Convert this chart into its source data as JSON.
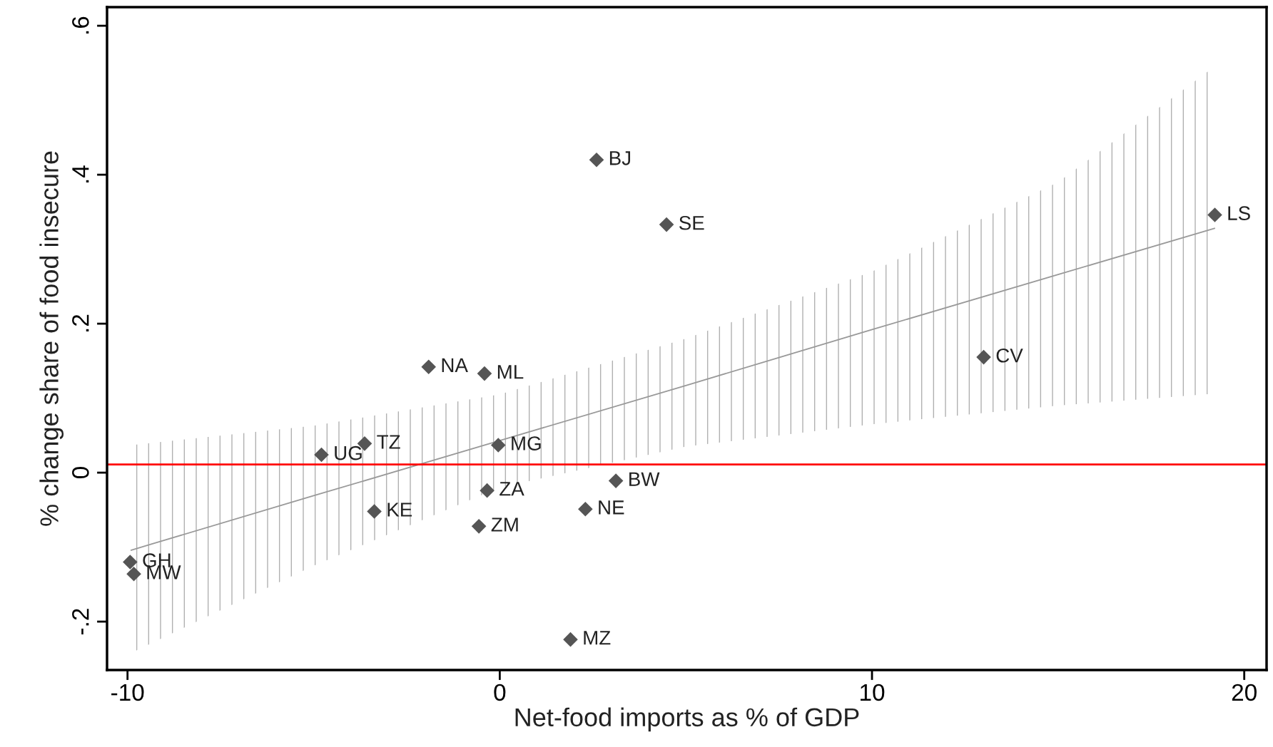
{
  "chart_data": {
    "type": "scatter",
    "xlabel": "Net-food imports as % of GDP",
    "ylabel": "% change share of food insecure",
    "xlim": [
      -10.55,
      20.6
    ],
    "ylim": [
      -0.265,
      0.625
    ],
    "xticks": [
      -10,
      0,
      10,
      20
    ],
    "yticks": [
      {
        "value": -0.2,
        "label": "-.2"
      },
      0,
      {
        "value": 0.2,
        "label": ".2"
      },
      {
        "value": 0.4,
        "label": ".4"
      },
      {
        "value": 0.6,
        "label": ".6"
      }
    ],
    "grid": false,
    "legend": false,
    "marker": "diamond",
    "series": [
      {
        "color": "#555555",
        "x": [
          2.6,
          4.48,
          19.21,
          13.0,
          -1.91,
          -0.41,
          -3.63,
          -4.79,
          -0.04,
          -0.34,
          3.12,
          -3.37,
          2.3,
          -0.56,
          -9.93,
          -9.83,
          1.9
        ],
        "values": [
          0.42,
          0.333,
          0.346,
          0.155,
          0.142,
          0.133,
          0.039,
          0.024,
          0.037,
          -0.024,
          -0.011,
          -0.052,
          -0.049,
          -0.072,
          -0.12,
          -0.136,
          -0.224
        ]
      },
      {
        "type": "line",
        "marker": "none",
        "color": "#999999",
        "x": [
          -9.9,
          -5,
          0,
          5,
          10,
          15,
          19.2
        ],
        "values": [
          -0.104,
          -0.031,
          0.043,
          0.117,
          0.192,
          0.266,
          0.328
        ],
        "lower": [
          -0.242,
          -0.125,
          -0.02,
          0.035,
          0.065,
          0.09,
          0.106
        ],
        "upper": [
          0.037,
          0.063,
          0.105,
          0.18,
          0.27,
          0.39,
          0.545
        ]
      }
    ],
    "ref_lines": [
      {
        "axis": "y",
        "value": 0.011,
        "color": "#ff0000",
        "line_style": "solid"
      }
    ],
    "annotations": [
      {
        "text": "BJ",
        "x": 2.6,
        "y": 0.42
      },
      {
        "text": "SE",
        "x": 4.48,
        "y": 0.333
      },
      {
        "text": "LS",
        "x": 19.21,
        "y": 0.346
      },
      {
        "text": "CV",
        "x": 13.0,
        "y": 0.155
      },
      {
        "text": "NA",
        "x": -1.91,
        "y": 0.142
      },
      {
        "text": "ML",
        "x": -0.41,
        "y": 0.133
      },
      {
        "text": "TZ",
        "x": -3.63,
        "y": 0.039
      },
      {
        "text": "UG",
        "x": -4.79,
        "y": 0.024
      },
      {
        "text": "MG",
        "x": -0.04,
        "y": 0.037
      },
      {
        "text": "ZA",
        "x": -0.34,
        "y": -0.024
      },
      {
        "text": "BW",
        "x": 3.12,
        "y": -0.011
      },
      {
        "text": "KE",
        "x": -3.37,
        "y": -0.052
      },
      {
        "text": "NE",
        "x": 2.3,
        "y": -0.049
      },
      {
        "text": "ZM",
        "x": -0.56,
        "y": -0.072
      },
      {
        "text": "GH",
        "x": -9.93,
        "y": -0.12
      },
      {
        "text": "MW",
        "x": -9.83,
        "y": -0.136
      },
      {
        "text": "MZ",
        "x": 1.9,
        "y": -0.224
      }
    ]
  }
}
